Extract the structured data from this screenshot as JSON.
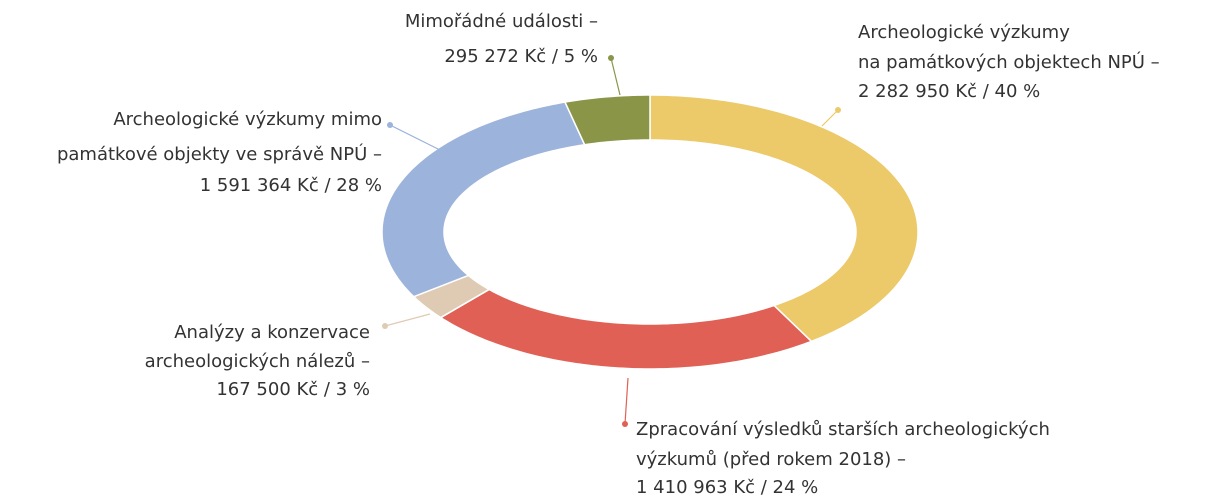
{
  "chart_data": {
    "type": "donut",
    "categories": [
      [
        "Archeologické výzkumy",
        "na památkových objektech NPÚ –"
      ],
      [
        "Zpracování výsledků starších archeologických",
        "výzkumů (před rokem 2018) –"
      ],
      [
        "Analýzy a konzervace",
        "archeologických nálezů –"
      ],
      [
        "Archeologické výzkumy mimo",
        "památkové objekty ve správě NPÚ –"
      ],
      [
        "Mimořádné události –"
      ]
    ],
    "values": [
      2282950,
      1410963,
      167500,
      1591364,
      295272
    ],
    "value_labels": [
      "2 282 950 Kč / 40 %",
      "1 410 963 Kč / 24 %",
      "167 500 Kč / 3 %",
      "1 591 364 Kč / 28 %",
      "295 272 Kč / 5 %"
    ],
    "colors": [
      "#ecc969",
      "#e06055",
      "#dfcbb3",
      "#9cb3dc",
      "#8a9548"
    ]
  }
}
